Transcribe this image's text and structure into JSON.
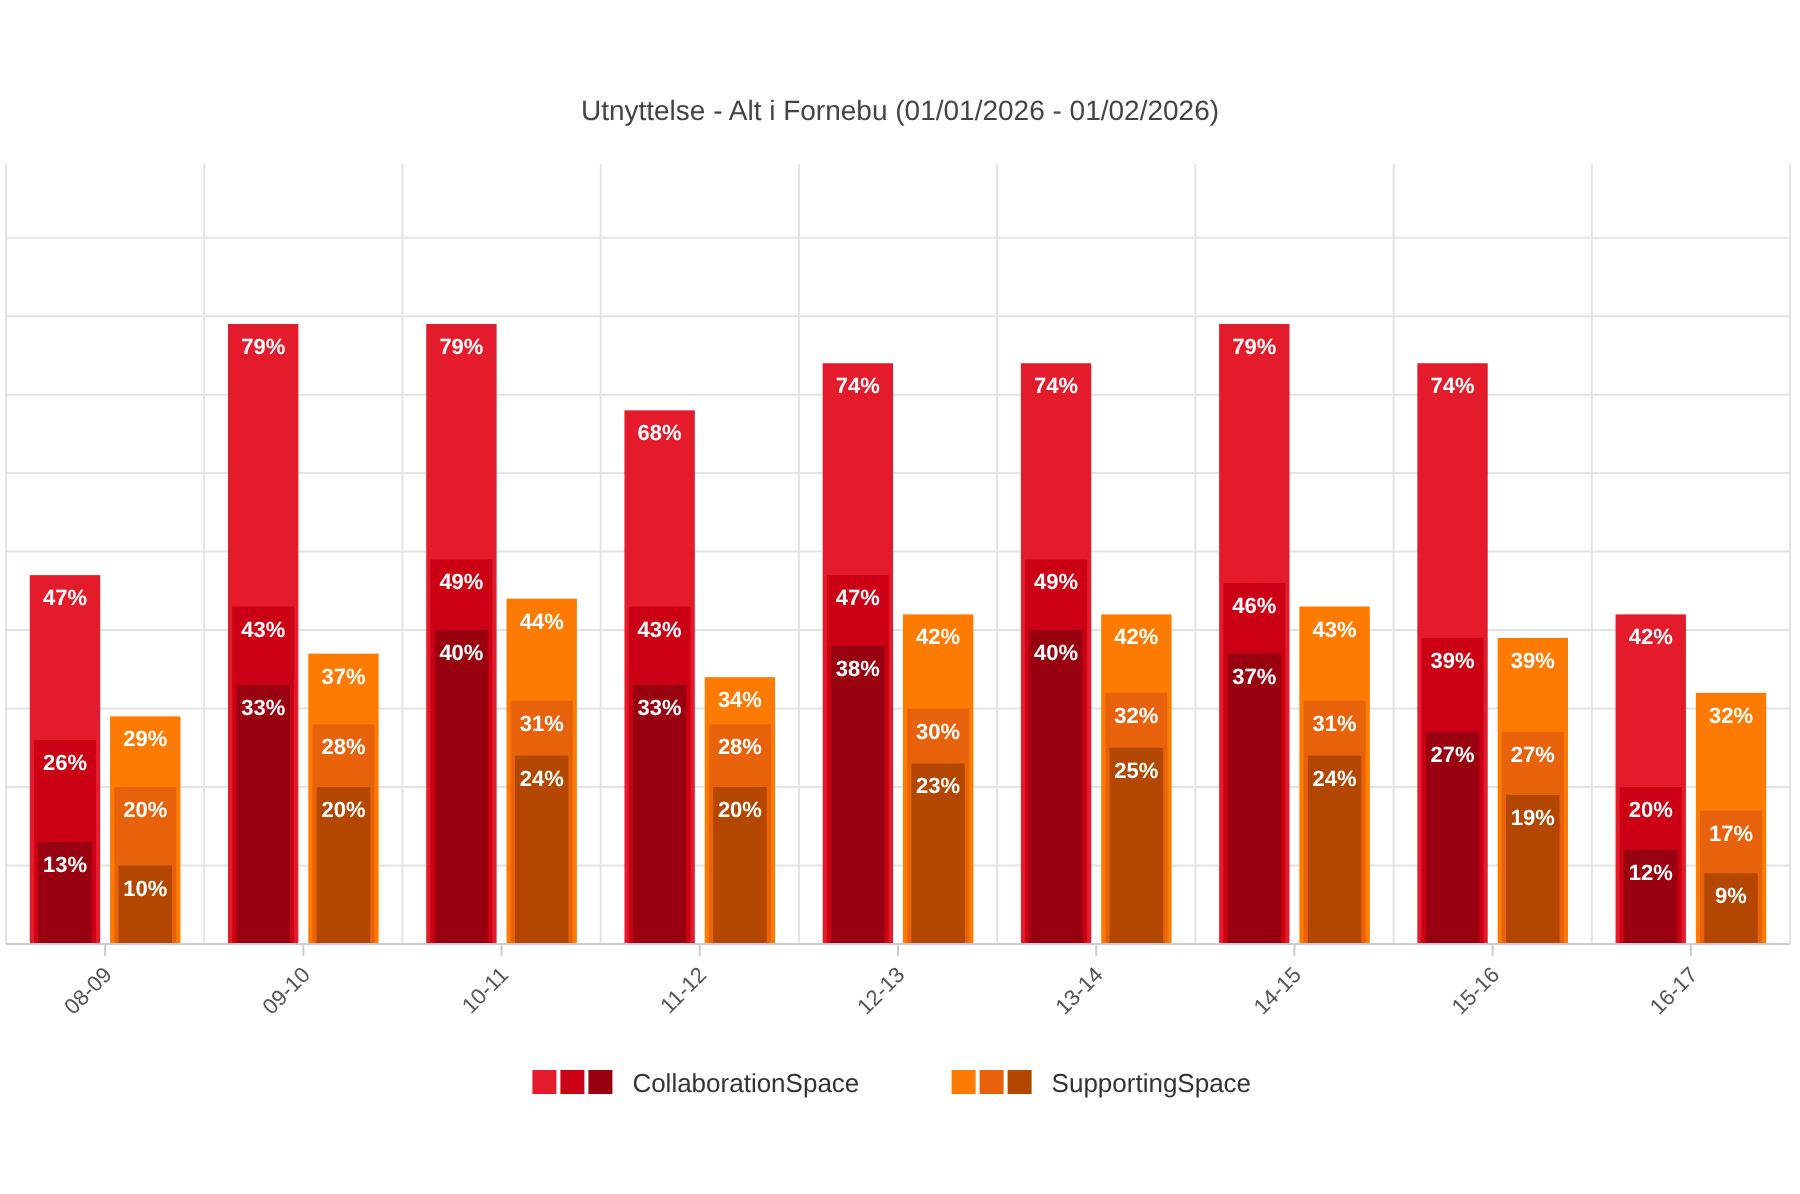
{
  "chart_data": {
    "type": "bar",
    "title": "Utnyttelse - Alt i Fornebu (01/01/2026 - 01/02/2026)",
    "categories": [
      "08-09",
      "09-10",
      "10-11",
      "11-12",
      "12-13",
      "13-14",
      "14-15",
      "15-16",
      "16-17"
    ],
    "series": [
      {
        "name": "CollaborationSpace",
        "color": "#99000f",
        "values": [
          13,
          33,
          40,
          33,
          38,
          40,
          37,
          27,
          12
        ],
        "value_labels": [
          "13%",
          "33%",
          "40%",
          "33%",
          "38%",
          "40%",
          "37%",
          "27%",
          "12%"
        ]
      },
      {
        "color": "#cc0014",
        "values": [
          26,
          43,
          49,
          43,
          47,
          49,
          46,
          39,
          20
        ],
        "value_labels": [
          "26%",
          "43%",
          "49%",
          "43%",
          "47%",
          "49%",
          "46%",
          "39%",
          "20%"
        ]
      },
      {
        "color": "#e31b2b",
        "values": [
          47,
          79,
          79,
          68,
          74,
          74,
          79,
          74,
          42
        ],
        "value_labels": [
          "47%",
          "79%",
          "79%",
          "68%",
          "74%",
          "74%",
          "79%",
          "74%",
          "42%"
        ]
      },
      {
        "name": "SupportingSpace",
        "color": "#b34700",
        "values": [
          10,
          20,
          24,
          20,
          23,
          25,
          24,
          19,
          9
        ],
        "value_labels": [
          "10%",
          "20%",
          "24%",
          "20%",
          "23%",
          "25%",
          "24%",
          "19%",
          "9%"
        ]
      },
      {
        "color": "#e8620c",
        "values": [
          20,
          28,
          31,
          28,
          30,
          32,
          31,
          27,
          17
        ],
        "value_labels": [
          "20%",
          "28%",
          "31%",
          "28%",
          "30%",
          "32%",
          "31%",
          "27%",
          "17%"
        ]
      },
      {
        "color": "#ff7a00",
        "values": [
          29,
          37,
          44,
          34,
          42,
          42,
          43,
          39,
          32
        ],
        "value_labels": [
          "29%",
          "37%",
          "44%",
          "34%",
          "42%",
          "42%",
          "43%",
          "39%",
          "32%"
        ]
      }
    ],
    "grid": true,
    "legend": "bottom",
    "tick_labels": "x"
  }
}
